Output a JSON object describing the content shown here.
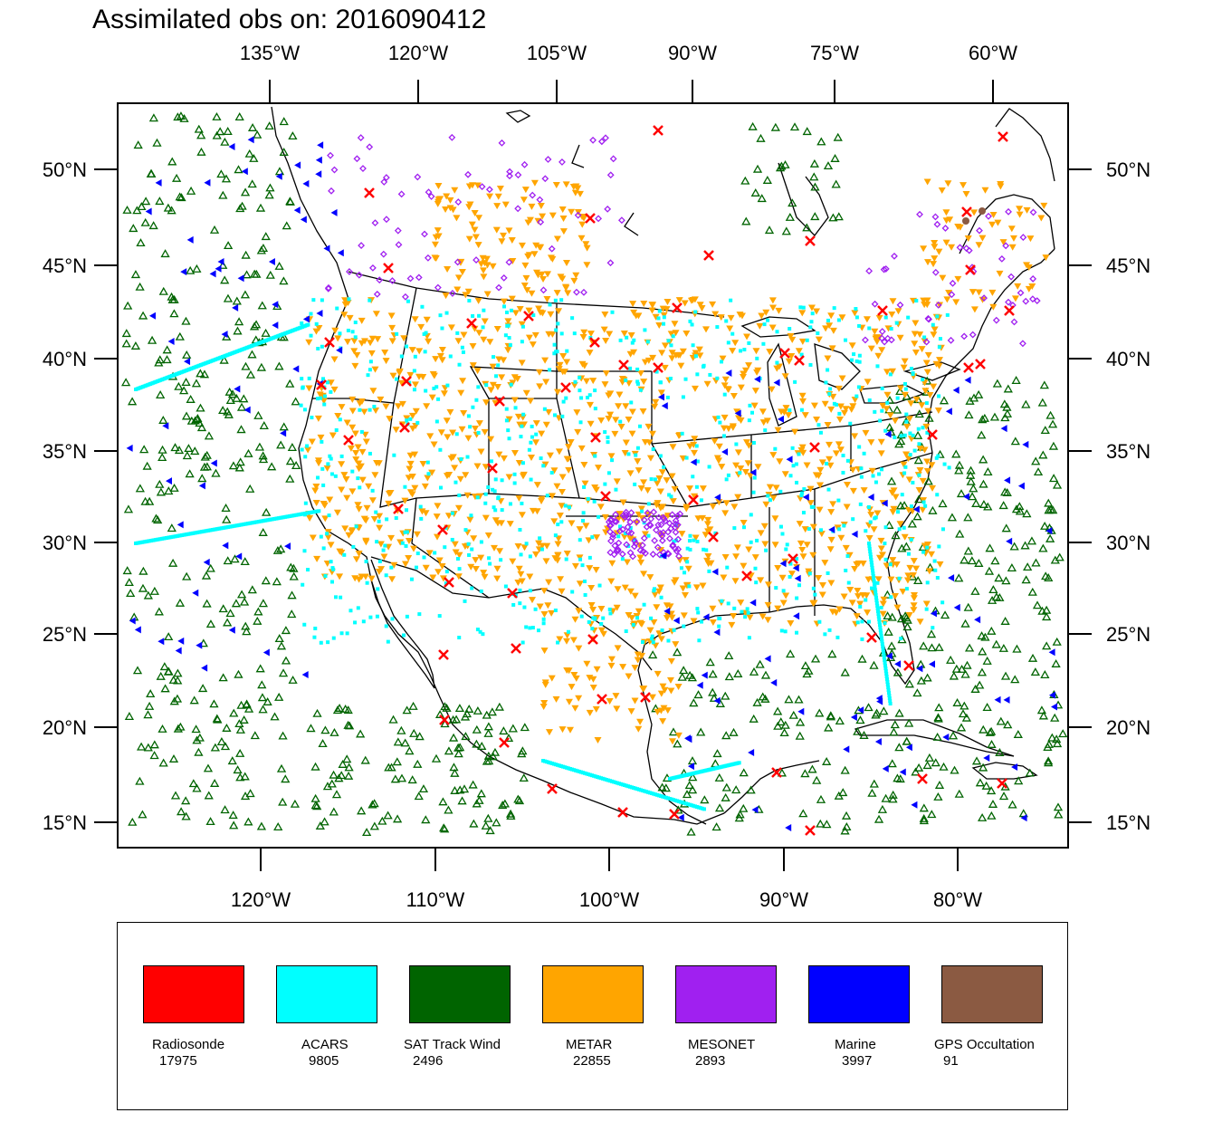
{
  "title": "Assimilated obs on: 2016090412",
  "colors": {
    "radiosonde": "#ff0000",
    "acars": "#00ffff",
    "sat_track_wind": "#006400",
    "metar": "#ffa500",
    "mesonet": "#a020f0",
    "marine": "#0000ff",
    "gps_occultation": "#8b5a42"
  },
  "axes": {
    "top_lon_labels": [
      "135°W",
      "120°W",
      "105°W",
      "90°W",
      "75°W",
      "60°W"
    ],
    "bottom_lon_labels": [
      "120°W",
      "110°W",
      "100°W",
      "90°W",
      "80°W"
    ],
    "left_lat_labels": [
      "50°N",
      "45°N",
      "40°N",
      "35°N",
      "30°N",
      "25°N",
      "20°N",
      "15°N"
    ],
    "right_lat_labels": [
      "50°N",
      "45°N",
      "40°N",
      "35°N",
      "30°N",
      "25°N",
      "20°N",
      "15°N"
    ]
  },
  "legend": [
    {
      "label": "Radiosonde",
      "count": "17975",
      "color": "#ff0000"
    },
    {
      "label": "ACARS",
      "count": "9805",
      "color": "#00ffff"
    },
    {
      "label": "SAT Track Wind",
      "count": "2496",
      "color": "#006400"
    },
    {
      "label": "METAR",
      "count": "22855",
      "color": "#ffa500"
    },
    {
      "label": "MESONET",
      "count": "2893",
      "color": "#a020f0"
    },
    {
      "label": "Marine",
      "count": "3997",
      "color": "#0000ff"
    },
    {
      "label": "GPS Occultation",
      "count": "91",
      "color": "#8b5a42"
    }
  ]
}
